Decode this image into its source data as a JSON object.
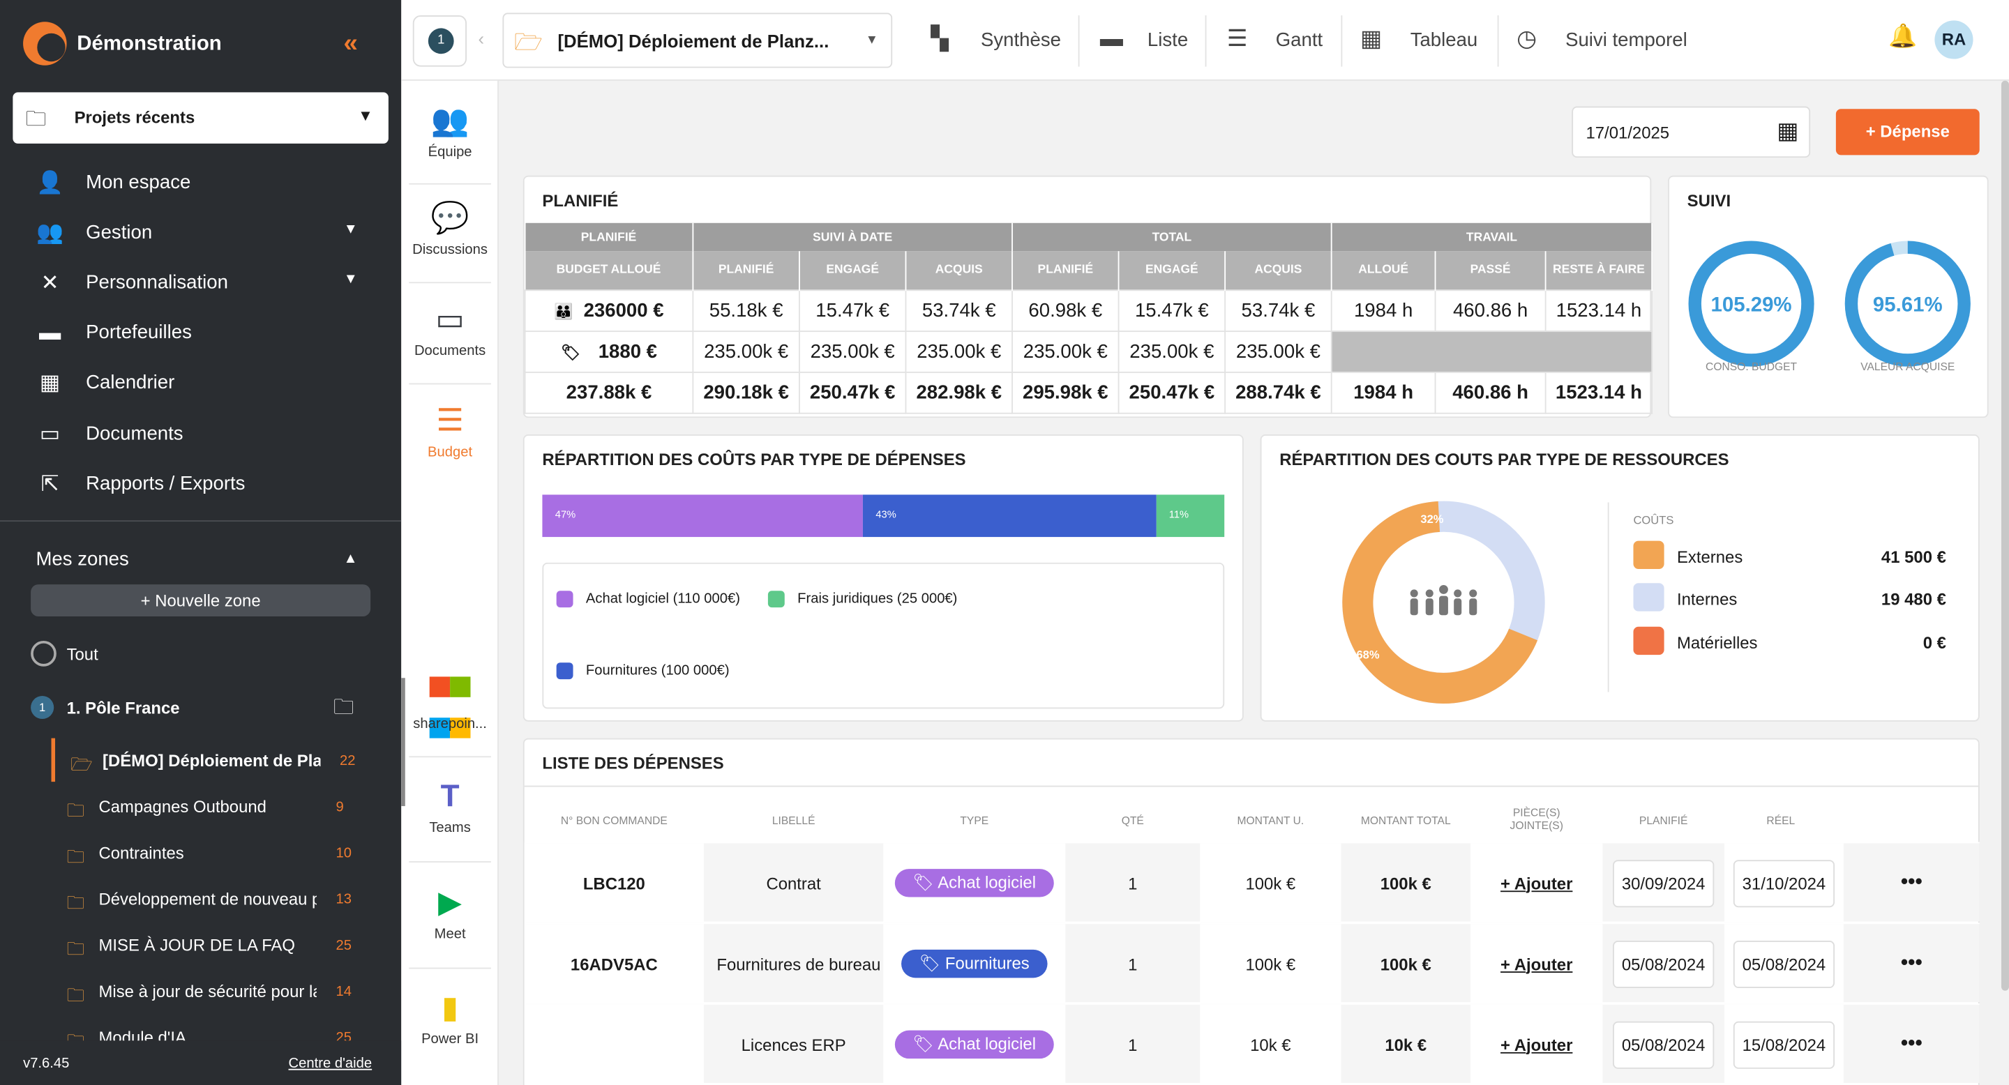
{
  "app": {
    "name": "Démonstration",
    "collapse_icon": "«",
    "version": "v7.6.45",
    "help": "Centre d'aide"
  },
  "sidebar": {
    "recent": "Projets récents",
    "items": [
      {
        "label": "Mon espace",
        "icon": "user-icon"
      },
      {
        "label": "Gestion",
        "icon": "group-icon"
      },
      {
        "label": "Personnalisation",
        "icon": "tools-icon"
      },
      {
        "label": "Portefeuilles",
        "icon": "wallet-icon"
      },
      {
        "label": "Calendrier",
        "icon": "calendar-icon"
      },
      {
        "label": "Documents",
        "icon": "document-icon"
      },
      {
        "label": "Rapports / Exports",
        "icon": "export-icon"
      }
    ],
    "zones_title": "Mes zones",
    "new_zone": "+ Nouvelle zone",
    "all": "Tout",
    "pole": "1. Pôle France",
    "pole_num": "1",
    "zone_items": [
      {
        "label": "[DÉMO] Déploiement de Plar",
        "count": "22"
      },
      {
        "label": "Campagnes Outbound",
        "count": "9"
      },
      {
        "label": "Contraintes",
        "count": "10"
      },
      {
        "label": "Développement de nouveau p",
        "count": "13"
      },
      {
        "label": "MISE À JOUR DE LA FAQ",
        "count": "25"
      },
      {
        "label": "Mise à jour de sécurité pour la",
        "count": "14"
      },
      {
        "label": "Module d'IA",
        "count": "25"
      }
    ]
  },
  "topbar": {
    "num": "1",
    "project": "[DÉMO] Déploiement de Planz...",
    "views": [
      "Synthèse",
      "Liste",
      "Gantt",
      "Tableau",
      "Suivi temporel"
    ],
    "avatar": "RA"
  },
  "modules": [
    "Équipe",
    "Discussions",
    "Documents",
    "Budget",
    "sharepoin...",
    "Teams",
    "Meet",
    "Power BI"
  ],
  "toolbar": {
    "date": "17/01/2025",
    "add_expense": "+ Dépense"
  },
  "planifie": {
    "title": "PLANIFIÉ",
    "groups": [
      "PLANIFIÉ",
      "SUIVI À DATE",
      "TOTAL",
      "TRAVAIL"
    ],
    "cols": [
      "BUDGET ALLOUÉ",
      "PLANIFIÉ",
      "ENGAGÉ",
      "ACQUIS",
      "PLANIFIÉ",
      "ENGAGÉ",
      "ACQUIS",
      "ALLOUÉ",
      "PASSÉ",
      "RESTE À FAIRE"
    ],
    "rows": [
      [
        "236000 €",
        "55.18k €",
        "15.47k €",
        "53.74k €",
        "60.98k €",
        "15.47k €",
        "53.74k €",
        "1984 h",
        "460.86 h",
        "1523.14 h"
      ],
      [
        "1880 €",
        "235.00k €",
        "235.00k €",
        "235.00k €",
        "235.00k €",
        "235.00k €",
        "235.00k €"
      ],
      [
        "237.88k €",
        "290.18k €",
        "250.47k €",
        "282.98k €",
        "295.98k €",
        "250.47k €",
        "288.74k €",
        "1984 h",
        "460.86 h",
        "1523.14 h"
      ]
    ]
  },
  "suivi": {
    "title": "SUIVI",
    "g1_val": "105.29%",
    "g1_label": "CONSO. BUDGET",
    "g1_pct": 100,
    "g2_val": "95.61%",
    "g2_label": "VALEUR ACQUISE",
    "g2_pct": 95.61
  },
  "rep_depenses": {
    "title": "RÉPARTITION DES COÛTS PAR TYPE DE DÉPENSES",
    "segments": [
      {
        "pct": "47%",
        "color": "#a86ee3",
        "w": 47
      },
      {
        "pct": "43%",
        "color": "#3b5fce",
        "w": 43
      },
      {
        "pct": "11%",
        "color": "#5ec98a",
        "w": 10
      }
    ],
    "legend": [
      "Achat logiciel (110 000€)",
      "Frais juridiques (25 000€)",
      "Fournitures (100 000€)"
    ]
  },
  "rep_ressources": {
    "title": "RÉPARTITION DES COUTS PAR TYPE DE RESSOURCES",
    "couts": "COÛTS",
    "p1": "32%",
    "p2": "68%",
    "rows": [
      {
        "name": "Externes",
        "value": "41 500 €",
        "color": "#f2a553"
      },
      {
        "name": "Internes",
        "value": "19 480 €",
        "color": "#d3ddf4"
      },
      {
        "name": "Matérielles",
        "value": "0 €",
        "color": "#f07345"
      }
    ]
  },
  "liste": {
    "title": "LISTE DES DÉPENSES",
    "headers": [
      "N° BON COMMANDE",
      "LIBELLÉ",
      "TYPE",
      "QTÉ",
      "MONTANT U.",
      "MONTANT TOTAL",
      "PIÈCE(S)\nJOINTE(S)",
      "PLANIFIÉ",
      "RÉEL"
    ],
    "add": "+ Ajouter",
    "more": "•••",
    "rows": [
      {
        "bc": "LBC120",
        "lib": "Contrat",
        "type": "Achat logiciel",
        "qty": "1",
        "mu": "100k €",
        "mt": "100k €",
        "plan": "30/09/2024",
        "reel": "31/10/2024"
      },
      {
        "bc": "16ADV5AC",
        "lib": "Fournitures de bureau",
        "type": "Fournitures",
        "qty": "1",
        "mu": "100k €",
        "mt": "100k €",
        "plan": "05/08/2024",
        "reel": "05/08/2024"
      },
      {
        "bc": "",
        "lib": "Licences ERP",
        "type": "Achat logiciel",
        "qty": "1",
        "mu": "10k €",
        "mt": "10k €",
        "plan": "05/08/2024",
        "reel": "15/08/2024"
      }
    ]
  }
}
